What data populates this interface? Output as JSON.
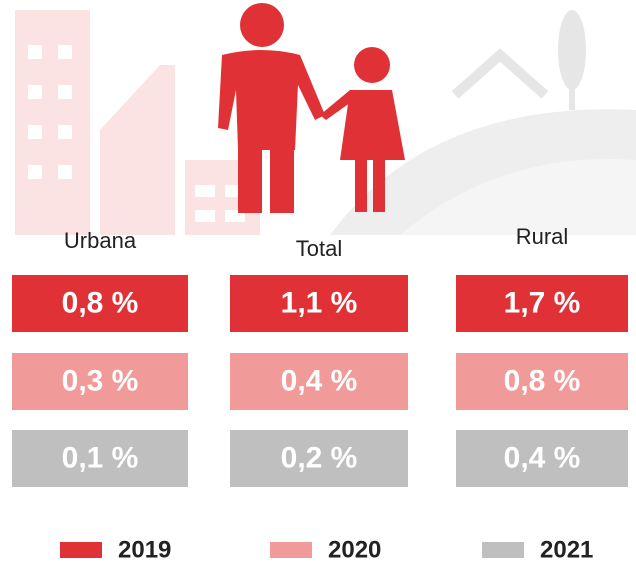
{
  "groups": [
    {
      "label": "Urbana",
      "values": [
        "0,8 %",
        "0,3 %",
        "0,1 %"
      ]
    },
    {
      "label": "Total",
      "values": [
        "1,1 %",
        "0,4 %",
        "0,2 %"
      ]
    },
    {
      "label": "Rural",
      "values": [
        "1,7 %",
        "0,8 %",
        "0,4 %"
      ]
    }
  ],
  "legend": [
    {
      "label": "2019",
      "color": "#e03236"
    },
    {
      "label": "2020",
      "color": "#f19a9a"
    },
    {
      "label": "2021",
      "color": "#bfbfbf"
    }
  ]
}
